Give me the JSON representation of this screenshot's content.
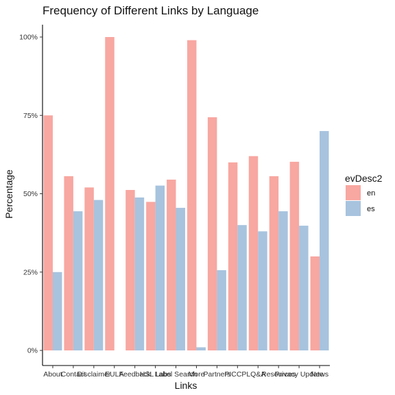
{
  "chart_data": {
    "type": "bar",
    "title": "Frequency of Different Links by Language",
    "xlabel": "Links",
    "ylabel": "Percentage",
    "ylim": [
      0,
      1
    ],
    "y_ticks": [
      0,
      0.25,
      0.5,
      0.75,
      1.0
    ],
    "y_tick_labels": [
      "0%",
      "25%",
      "50%",
      "75%",
      "100%"
    ],
    "categories": [
      "About",
      "Contact",
      "Disclaimer",
      "EULA",
      "Feedback",
      "HSL Labs",
      "Label Search",
      "More",
      "Partners",
      "PICCPL",
      "Q&A",
      "Resources",
      "Privacy Update",
      "News"
    ],
    "category_labels": [
      "About",
      "Contact",
      "Disclaimer",
      "EULA",
      "Feedback",
      "HSL Labs",
      "Label Search",
      "More",
      "Partners",
      "PICCPL",
      "Q&A",
      "Resources",
      "Privacy Update",
      "News"
    ],
    "series": [
      {
        "name": "en",
        "color": "#F8A7A1",
        "values": [
          0.75,
          0.556,
          0.52,
          1.0,
          0.512,
          0.474,
          0.545,
          0.99,
          0.744,
          0.6,
          0.62,
          0.556,
          0.602,
          0.3
        ]
      },
      {
        "name": "es",
        "color": "#A7C3DE",
        "values": [
          0.25,
          0.444,
          0.48,
          0.0,
          0.488,
          0.526,
          0.455,
          0.01,
          0.256,
          0.4,
          0.38,
          0.444,
          0.398,
          0.7
        ]
      }
    ],
    "legend": {
      "title": "evDesc2",
      "position": "right"
    },
    "grid": false
  }
}
